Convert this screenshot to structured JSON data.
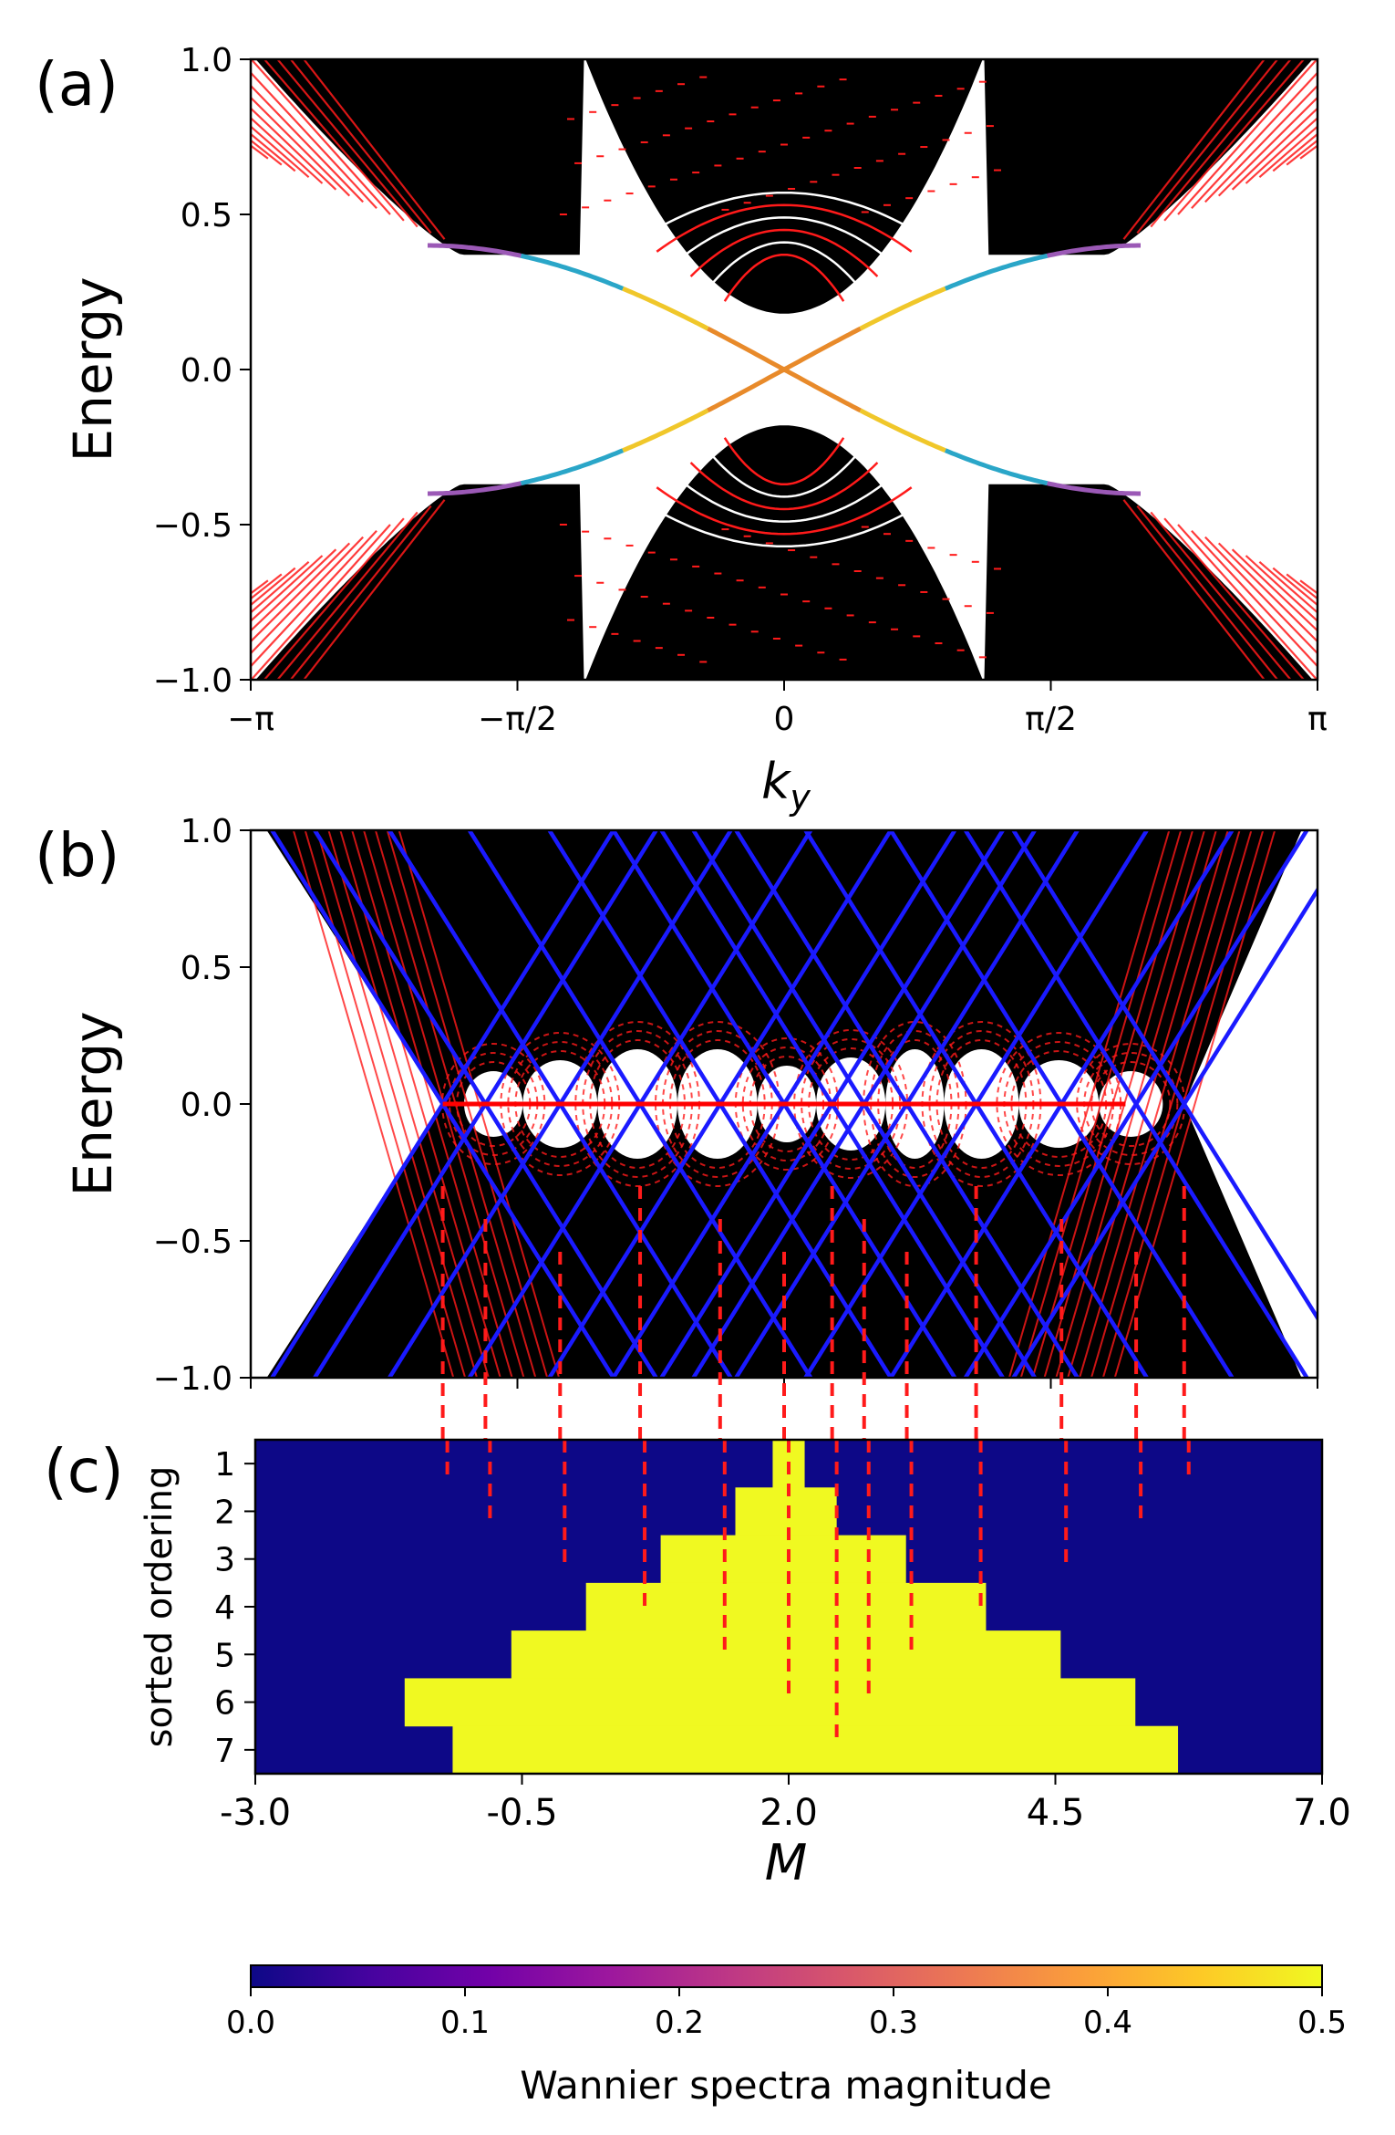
{
  "figure": {
    "panel_labels": [
      "(a)",
      "(b)",
      "(c)"
    ]
  },
  "chart_data": [
    {
      "panel": "(a)",
      "type": "line",
      "xlabel": "k_y",
      "ylabel": "Energy",
      "xlim": [
        -3.14159,
        3.14159
      ],
      "ylim": [
        -1.0,
        1.0
      ],
      "xticks": [
        -3.14159,
        -1.5708,
        0,
        1.5708,
        3.14159
      ],
      "xtick_labels": [
        "−π",
        "−π/2",
        "0",
        "π/2",
        "π"
      ],
      "yticks": [
        -1.0,
        -0.5,
        0.0,
        0.5,
        1.0
      ],
      "ytick_labels": [
        "−1.0",
        "−0.5",
        "0.0",
        "0.5",
        "1.0"
      ],
      "bulk_color": "#000000",
      "bulk_highlight_color": "#ff1a1a",
      "edge_state_colors": [
        "#e88a2a",
        "#f0c72a",
        "#2aa6c8",
        "#9b59b6"
      ],
      "edge_state_crossing": {
        "k": 0,
        "E": 0
      }
    },
    {
      "panel": "(b)",
      "type": "line",
      "xlabel": "",
      "ylabel": "Energy",
      "xlim": [
        -3.0,
        7.0
      ],
      "ylim": [
        -1.0,
        1.0
      ],
      "yticks": [
        -1.0,
        -0.5,
        0.0,
        0.5,
        1.0
      ],
      "ytick_labels": [
        "−1.0",
        "−0.5",
        "0.0",
        "0.5",
        "1.0"
      ],
      "line_color": "#1a1aff",
      "zero_mode_color": "#ff0000",
      "zero_mode_range": [
        -1.2,
        5.2
      ],
      "gap_closings": [
        -1.2,
        -0.8,
        -0.1,
        0.65,
        1.4,
        2.0,
        2.45,
        2.75,
        3.15,
        3.8,
        4.6,
        5.3,
        5.75
      ],
      "bulk_color": "#000000",
      "bulk_highlight_color": "#ff1a1a"
    },
    {
      "panel": "(c)",
      "type": "heatmap",
      "xlabel": "M",
      "ylabel": "sorted ordering",
      "xlim": [
        -3.0,
        7.0
      ],
      "xticks": [
        -3.0,
        -0.5,
        2.0,
        4.5,
        7.0
      ],
      "xtick_labels": [
        "-3.0",
        "-0.5",
        "2.0",
        "4.5",
        "7.0"
      ],
      "rows": [
        1,
        2,
        3,
        4,
        5,
        6,
        7
      ],
      "row_yellow_ranges": [
        [
          1.85,
          2.15
        ],
        [
          1.5,
          2.45
        ],
        [
          0.8,
          3.1
        ],
        [
          0.1,
          3.85
        ],
        [
          -0.6,
          4.55
        ],
        [
          -1.6,
          5.25
        ],
        [
          -1.15,
          5.65
        ]
      ],
      "low_color": "#0d0887",
      "high_color": "#f0f921",
      "dashed_markers": [
        -1.2,
        -0.8,
        -0.1,
        0.65,
        1.4,
        2.0,
        2.45,
        2.75,
        3.15,
        3.8,
        4.6,
        5.3,
        5.75
      ]
    },
    {
      "panel": "colorbar",
      "type": "heatmap",
      "label": "Wannier spectra magnitude",
      "range": [
        0.0,
        0.5
      ],
      "ticks": [
        0.0,
        0.1,
        0.2,
        0.3,
        0.4,
        0.5
      ],
      "tick_labels": [
        "0.0",
        "0.1",
        "0.2",
        "0.3",
        "0.4",
        "0.5"
      ],
      "colormap_stops": [
        "#0d0887",
        "#46039f",
        "#7201a8",
        "#9c179e",
        "#bd3786",
        "#d8576b",
        "#ed7953",
        "#fb9f3a",
        "#fdca26",
        "#f0f921"
      ]
    }
  ]
}
